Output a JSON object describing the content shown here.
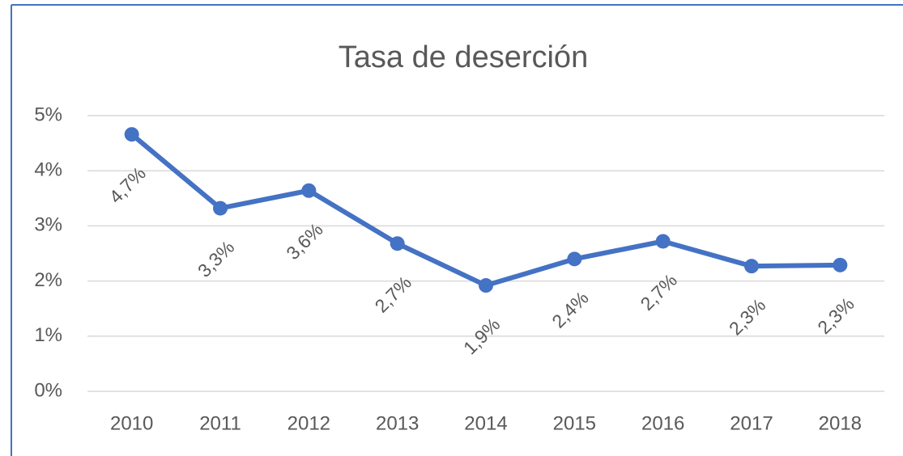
{
  "chart_data": {
    "type": "line",
    "title": "Tasa de deserción",
    "categories": [
      "2010",
      "2011",
      "2012",
      "2013",
      "2014",
      "2015",
      "2016",
      "2017",
      "2018"
    ],
    "series": [
      {
        "name": "Tasa de deserción",
        "color": "#4472c4",
        "values": [
          4.66,
          3.32,
          3.64,
          2.68,
          1.92,
          2.4,
          2.72,
          2.27,
          2.29
        ],
        "value_labels": [
          "4,7%",
          "3,3%",
          "3,6%",
          "2,7%",
          "1,9%",
          "2,4%",
          "2,7%",
          "2,3%",
          "2,3%"
        ]
      }
    ],
    "ylim": [
      0,
      5
    ],
    "yticks": [
      {
        "value": 0,
        "label": "0%"
      },
      {
        "value": 1,
        "label": "1%"
      },
      {
        "value": 2,
        "label": "2%"
      },
      {
        "value": 3,
        "label": "3%"
      },
      {
        "value": 4,
        "label": "4%"
      },
      {
        "value": 5,
        "label": "5%"
      }
    ],
    "grid": true
  }
}
